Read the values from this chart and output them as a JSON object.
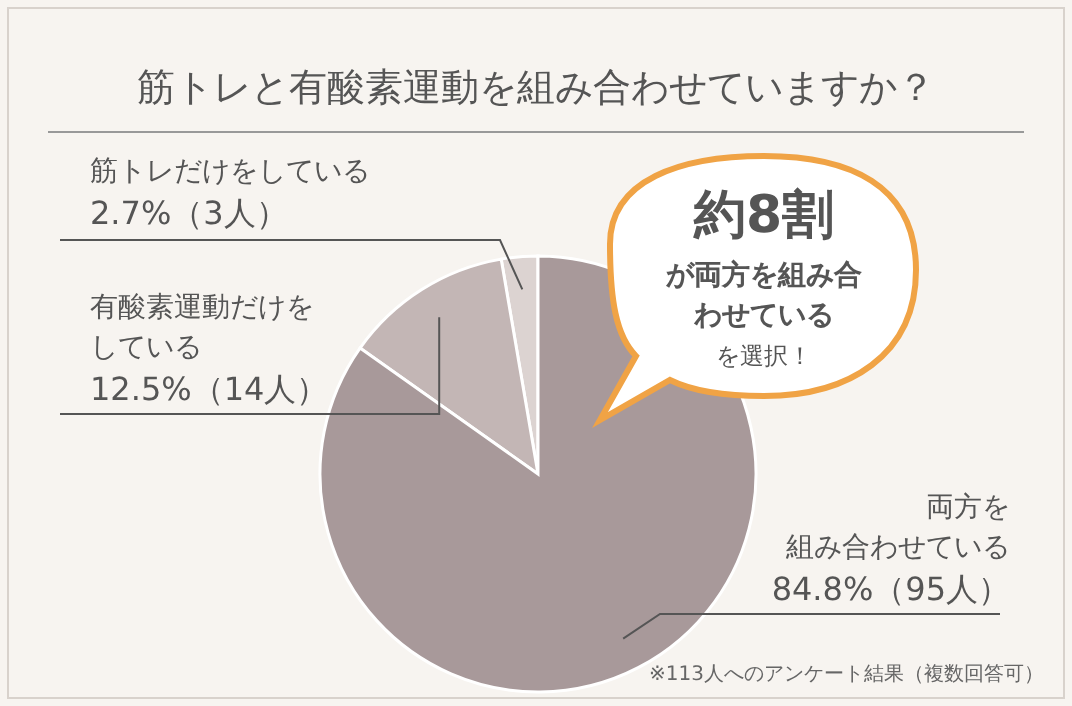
{
  "chart_data": {
    "type": "pie",
    "title": "筋トレと有酸素運動を組み合わせていますか？",
    "categories": [
      "筋トレだけをしている",
      "有酸素運動だけをしている",
      "両方を組み合わせている"
    ],
    "values": [
      2.7,
      12.5,
      84.8
    ],
    "colors": [
      "#dcd3d1",
      "#c3b6b5",
      "#a8999a"
    ],
    "value_labels": [
      "2.7%（3人）",
      "12.5%（14人）",
      "84.8%（95人）"
    ],
    "annotations": [
      "約8割",
      "が両方を組み合わせている",
      "を選択！",
      "※113人へのアンケート結果（複数回答可）"
    ]
  }
}
